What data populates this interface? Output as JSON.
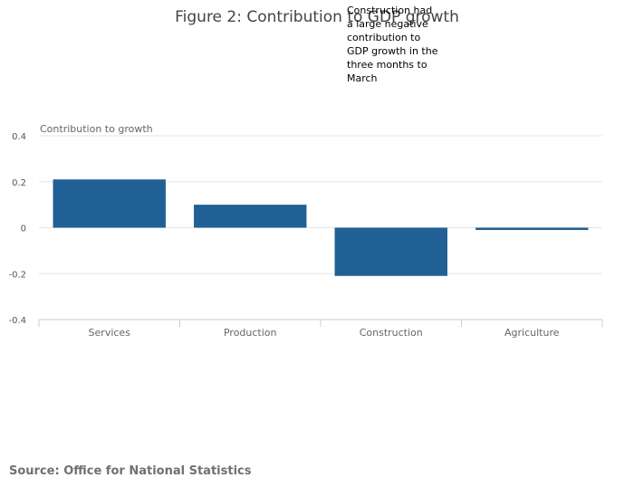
{
  "chart_data": {
    "type": "bar",
    "title": "Figure 2: Contribution to GDP growth",
    "categories": [
      "Services",
      "Production",
      "Construction",
      "Agriculture"
    ],
    "values": [
      0.21,
      0.1,
      -0.21,
      -0.01
    ],
    "series_color": "#206095",
    "xlabel": "",
    "ylabel": "Contribution to growth",
    "ylim": [
      -0.4,
      0.4
    ],
    "yticks": [
      0.4,
      0.2,
      0,
      -0.2,
      -0.4
    ],
    "ytick_labels": [
      "0.4",
      "0.2",
      "0",
      "-0.2",
      "-0.4"
    ],
    "grid": true,
    "annotation": {
      "category": "Construction",
      "lines": [
        "Construction had",
        "a large negative",
        "contribution to",
        "GDP growth in the",
        "three months to",
        "March"
      ]
    }
  },
  "source": "Source: Office for National Statistics",
  "colors": {
    "bar": "#206095",
    "grid": "#e6e6e6",
    "axis": "#c8cce0"
  }
}
